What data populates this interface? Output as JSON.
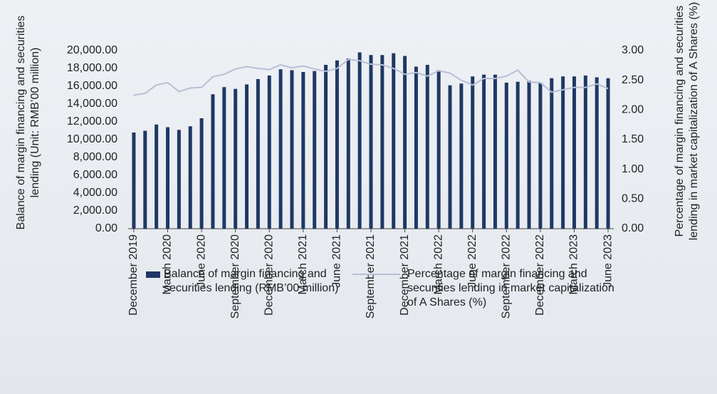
{
  "chart_data": {
    "type": "bar_line",
    "y_label": "Balance of margin financing and securities lending (Unit: RMB’00 million)",
    "y2_label": "Percentage of margin financing and securities lending in market capitalization of A Shares (%)",
    "categories": [
      "December 2019",
      null,
      null,
      "March 2020",
      null,
      null,
      "June 2020",
      null,
      null,
      "September 2020",
      null,
      null,
      "December 2020",
      null,
      null,
      "March 2021",
      null,
      null,
      "June 2021",
      null,
      null,
      "September 2021",
      null,
      null,
      "December 2021",
      null,
      null,
      "March 2022",
      null,
      null,
      "June 2022",
      null,
      null,
      "September 2022",
      null,
      null,
      "December 2022",
      null,
      null,
      "March 2023",
      null,
      null,
      "June 2023"
    ],
    "series": [
      {
        "name": "Balance of margin financing and securities lending (RMB’00 million)",
        "type": "bar",
        "color": "#1f3864",
        "values": [
          10800,
          11000,
          11700,
          11400,
          11100,
          11500,
          12400,
          15100,
          15900,
          15700,
          16200,
          16800,
          17200,
          17900,
          17800,
          17600,
          17700,
          18400,
          18900,
          19100,
          19800,
          19500,
          19500,
          19700,
          19400,
          18200,
          18400,
          17800,
          16100,
          16300,
          17100,
          17300,
          17300,
          16400,
          16500,
          16600,
          16400,
          16900,
          17100,
          17100,
          17200,
          17000,
          16900
        ]
      },
      {
        "name": "Percentage of margin financing and securities lending in market capitalization of A Shares (%)",
        "type": "line",
        "axis": "y2",
        "color": "#b7bfd6",
        "values": [
          2.25,
          2.28,
          2.42,
          2.46,
          2.31,
          2.37,
          2.38,
          2.56,
          2.6,
          2.69,
          2.73,
          2.7,
          2.68,
          2.76,
          2.71,
          2.74,
          2.69,
          2.65,
          2.7,
          2.85,
          2.83,
          2.77,
          2.76,
          2.7,
          2.6,
          2.63,
          2.57,
          2.66,
          2.62,
          2.5,
          2.42,
          2.53,
          2.53,
          2.57,
          2.67,
          2.47,
          2.46,
          2.3,
          2.34,
          2.38,
          2.38,
          2.44,
          2.36
        ]
      }
    ],
    "ylim": [
      0,
      20000
    ],
    "yticks": [
      {
        "value": 0,
        "label": "0.00"
      },
      {
        "value": 2000,
        "label": "2,000.00"
      },
      {
        "value": 4000,
        "label": "4,000.00"
      },
      {
        "value": 6000,
        "label": "6,000.00"
      },
      {
        "value": 8000,
        "label": "8,000.00"
      },
      {
        "value": 10000,
        "label": "10,000.00"
      },
      {
        "value": 12000,
        "label": "12,000.00"
      },
      {
        "value": 14000,
        "label": "14,000.00"
      },
      {
        "value": 16000,
        "label": "16,000.00"
      },
      {
        "value": 18000,
        "label": "18,000.00"
      },
      {
        "value": 20000,
        "label": "20,000.00"
      }
    ],
    "y2lim": [
      0,
      3
    ],
    "y2ticks": [
      {
        "value": 0,
        "label": "0.00"
      },
      {
        "value": 0.5,
        "label": "0.50"
      },
      {
        "value": 1,
        "label": "1.00"
      },
      {
        "value": 1.5,
        "label": "1.50"
      },
      {
        "value": 2,
        "label": "2.00"
      },
      {
        "value": 2.5,
        "label": "2.50"
      },
      {
        "value": 3,
        "label": "3.00"
      }
    ],
    "legend": "bottom"
  }
}
